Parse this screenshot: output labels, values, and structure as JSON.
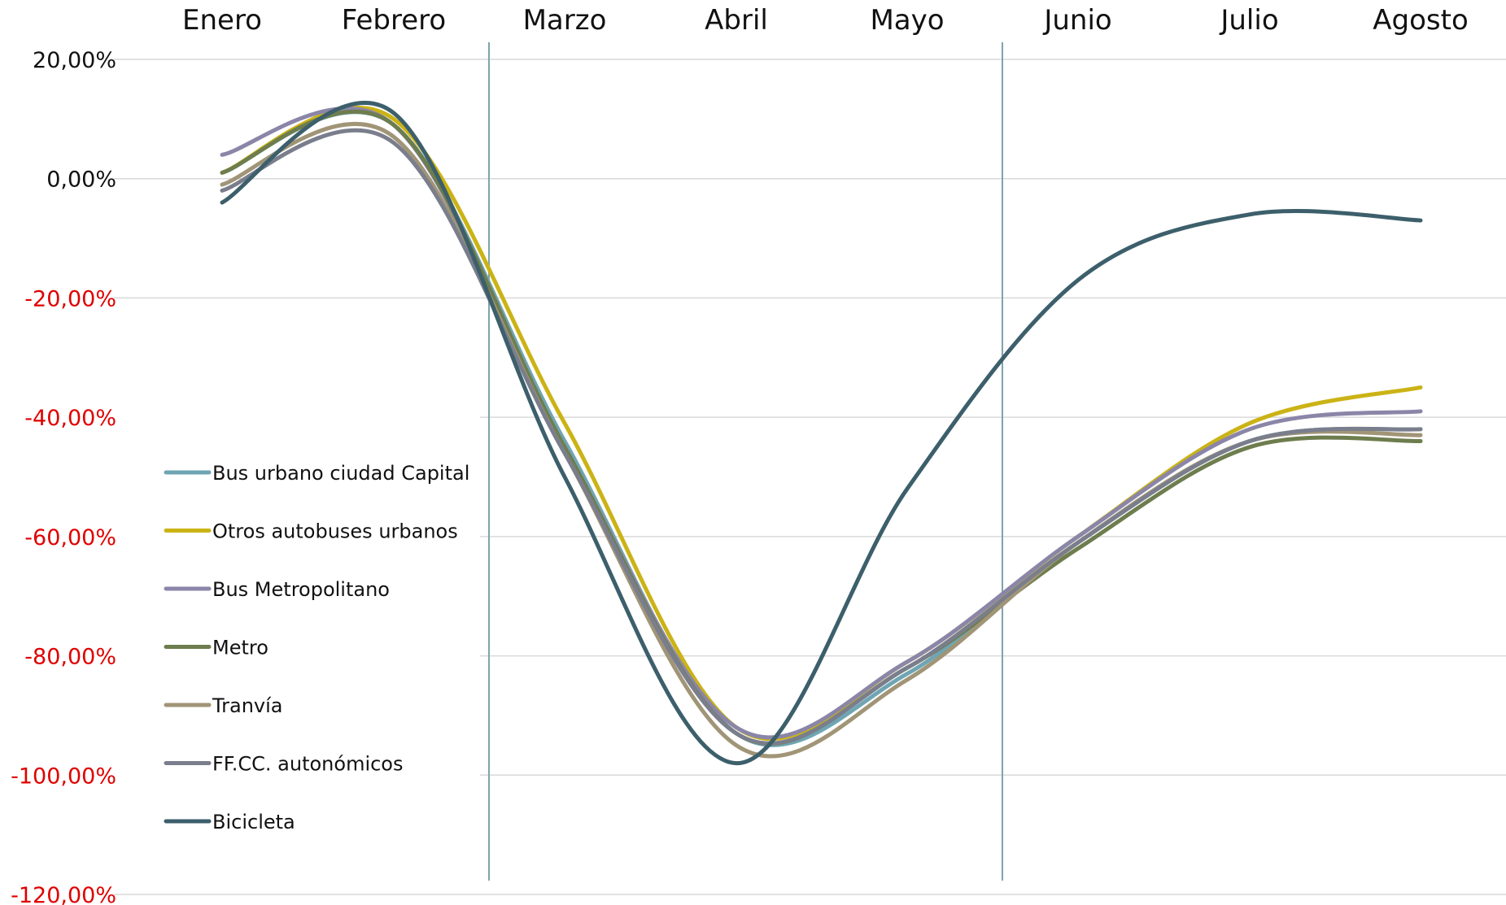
{
  "chart_data": {
    "type": "line",
    "categories": [
      "Enero",
      "Febrero",
      "Marzo",
      "Abril",
      "Mayo",
      "Junio",
      "Julio",
      "Agosto"
    ],
    "ylim": [
      -120,
      20
    ],
    "yticks": [
      "20,00%",
      "0,00%",
      "-20,00%",
      "-40,00%",
      "-60,00%",
      "-80,00%",
      "-100,00%",
      "-120,00%"
    ],
    "ytick_values": [
      20,
      0,
      -20,
      -40,
      -60,
      -80,
      -100,
      -120
    ],
    "negative_tick_color": "#e00000",
    "positive_tick_color": "#111111",
    "grid": true,
    "legend_position": "left",
    "month_markers": [
      "Marzo",
      "Junio"
    ],
    "series": [
      {
        "name": "Bus urbano ciudad Capital",
        "color": "#6fa5b3",
        "values": [
          1,
          9,
          -44,
          -93,
          -83,
          -61,
          -44,
          -42
        ]
      },
      {
        "name": "Otros autobuses urbanos",
        "color": "#cbb316",
        "values": [
          1,
          10,
          -41,
          -92,
          -81,
          -60,
          -41,
          -35
        ]
      },
      {
        "name": "Bus Metropolitano",
        "color": "#8b86a8",
        "values": [
          4,
          9,
          -45,
          -92,
          -81,
          -60,
          -42,
          -39
        ]
      },
      {
        "name": "Metro",
        "color": "#6e7d4e",
        "values": [
          1,
          9,
          -45,
          -93,
          -82,
          -62,
          -45,
          -44
        ]
      },
      {
        "name": "Tranvía",
        "color": "#a19577",
        "values": [
          -1,
          7,
          -46,
          -95,
          -84,
          -61,
          -44,
          -43
        ]
      },
      {
        "name": "FF.CC. autonómicos",
        "color": "#7a7e8c",
        "values": [
          -2,
          6,
          -46,
          -93,
          -82,
          -61,
          -44,
          -42
        ]
      },
      {
        "name": "Bicicleta",
        "color": "#3c5f6b",
        "values": [
          -4,
          11,
          -50,
          -98,
          -52,
          -17,
          -6,
          -7
        ]
      }
    ]
  }
}
